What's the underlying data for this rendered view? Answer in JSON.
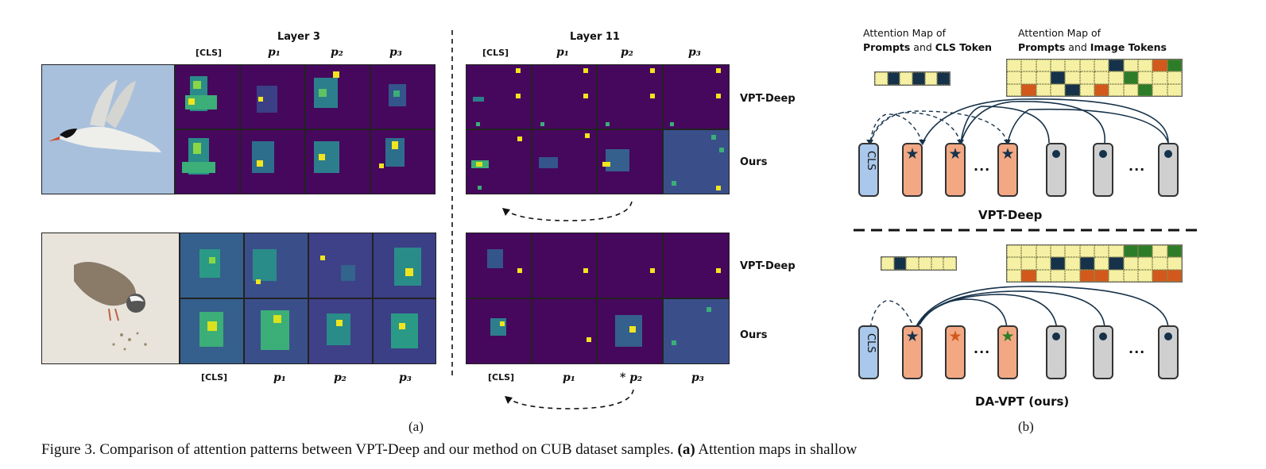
{
  "panel_a": {
    "layer3_title": "Layer 3",
    "layer11_title": "Layer 11",
    "col_cls": "[CLS]",
    "col_p1": "p₁",
    "col_p2": "p₂",
    "col_p3": "p₃",
    "col_p2_marked": "* p₂",
    "row_vpt": "VPT-Deep",
    "row_ours": "Ours",
    "label": "(a)"
  },
  "panel_b": {
    "legend_cls_line1": "Attention Map of",
    "legend_cls_bold1": "Prompts",
    "legend_cls_and": " and ",
    "legend_cls_bold2": "CLS Token",
    "legend_img_line1": "Attention Map of",
    "legend_img_bold1": "Prompts",
    "legend_img_and": " and ",
    "legend_img_bold2": "Image Tokens",
    "token_cls": "CLS",
    "ellipsis": "...",
    "title_vpt": "VPT-Deep",
    "title_ours": "DA-VPT (ours)",
    "label": "(b)",
    "colors": {
      "pale": "#f5f0a3",
      "navy": "#16324a",
      "orange": "#d2591b",
      "green": "#2d7d28"
    }
  },
  "caption": {
    "prefix": "Figure 3. Comparison of attention patterns between VPT-Deep and our method on CUB dataset samples. ",
    "bold": "(a)",
    "suffix": " Attention maps in shallow"
  }
}
